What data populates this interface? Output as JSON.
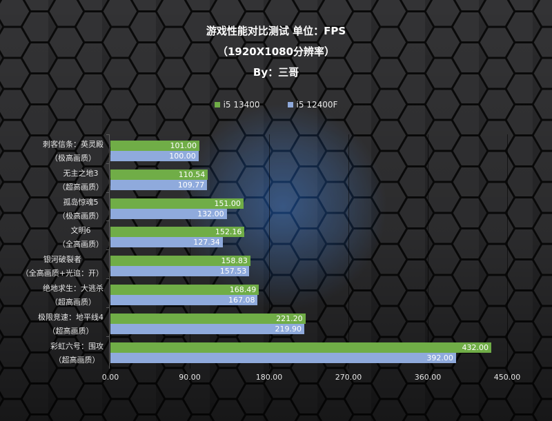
{
  "title": {
    "line1": "游戏性能对比测试 单位：FPS",
    "line2": "（1920X1080分辨率）",
    "line3": "By：三哥"
  },
  "legend": [
    {
      "label": "i5 13400",
      "color": "#70AD47"
    },
    {
      "label": "i5 12400F",
      "color": "#8FAADC"
    }
  ],
  "categories": [
    {
      "name": "刺客信条：英灵殿",
      "setting": "（极高画质）"
    },
    {
      "name": "无主之地3",
      "setting": "（超高画质）"
    },
    {
      "name": "孤岛惊魂5",
      "setting": "（极高画质）"
    },
    {
      "name": "文明6",
      "setting": "（全高画质）"
    },
    {
      "name": "银河破裂者",
      "setting": "（全高画质+光追：开）"
    },
    {
      "name": "绝地求生：大逃杀",
      "setting": "（超高画质）"
    },
    {
      "name": "极限竞速：地平线4",
      "setting": "（超高画质）"
    },
    {
      "name": "彩虹六号：围攻",
      "setting": "（超高画质）"
    }
  ],
  "values_13400": [
    "101.00",
    "110.54",
    "151.00",
    "152.16",
    "158.83",
    "168.49",
    "221.20",
    "432.00"
  ],
  "values_12400f": [
    "100.00",
    "109.77",
    "132.00",
    "127.34",
    "157.53",
    "167.08",
    "219.90",
    "392.00"
  ],
  "x_ticks": [
    "0.00",
    "90.00",
    "180.00",
    "270.00",
    "360.00",
    "450.00"
  ],
  "chart_data": {
    "type": "bar",
    "orientation": "horizontal",
    "title": "游戏性能对比测试 单位：FPS（1920X1080分辨率）By：三哥",
    "categories": [
      "刺客信条：英灵殿（极高画质）",
      "无主之地3（超高画质）",
      "孤岛惊魂5（极高画质）",
      "文明6（全高画质）",
      "银河破裂者（全高画质+光追：开）",
      "绝地求生：大逃杀（超高画质）",
      "极限竞速：地平线4（超高画质）",
      "彩虹六号：围攻（超高画质）"
    ],
    "series": [
      {
        "name": "i5 13400",
        "color": "#70AD47",
        "values": [
          101.0,
          110.54,
          151.0,
          152.16,
          158.83,
          168.49,
          221.2,
          432.0
        ]
      },
      {
        "name": "i5 12400F",
        "color": "#8FAADC",
        "values": [
          100.0,
          109.77,
          132.0,
          127.34,
          157.53,
          167.08,
          219.9,
          392.0
        ]
      }
    ],
    "xlabel": "",
    "ylabel": "",
    "xlim": [
      0,
      450
    ],
    "x_ticks": [
      0,
      90,
      180,
      270,
      360,
      450
    ],
    "grid": "vertical",
    "legend_position": "top",
    "data_labels": true
  }
}
